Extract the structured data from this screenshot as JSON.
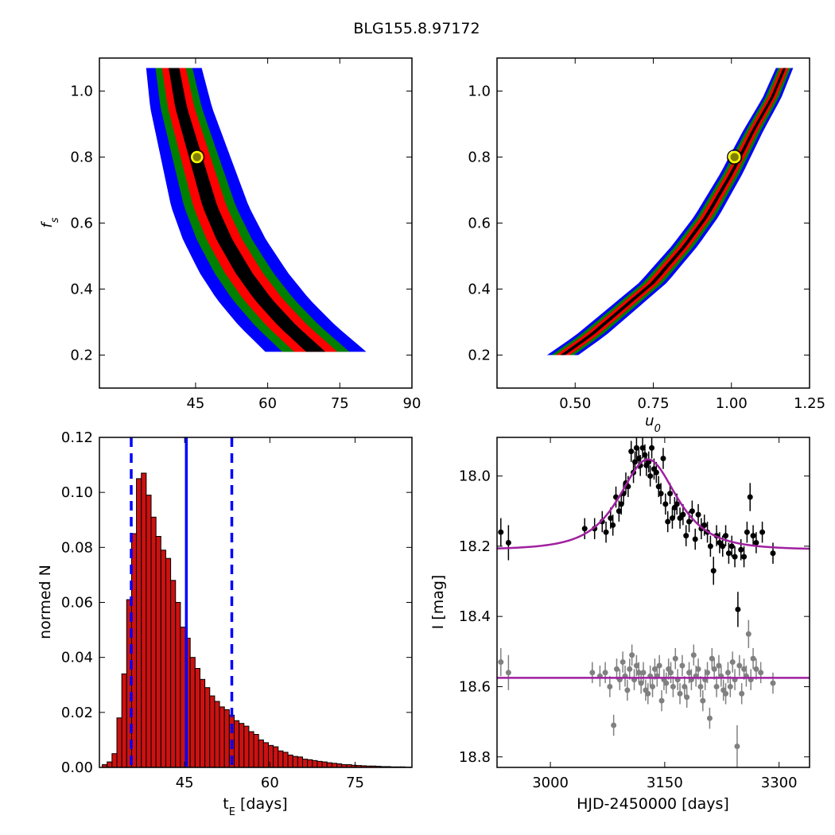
{
  "figure": {
    "title": "BLG155.8.97172"
  },
  "colors": {
    "sigma1": "#000000",
    "sigma2": "#ff0000",
    "sigma3": "#008000",
    "sigma4": "#0000ff",
    "best_marker_face": "#808000",
    "best_marker_edge": "#ffff00",
    "hist_bar": "#cc1111",
    "hist_lines": "#0000ff",
    "lc_event": "#000000",
    "lc_comparison": "#808080",
    "model": "#a020a0"
  },
  "chart_data": [
    {
      "id": "fs_vs_tE",
      "type": "heatmap",
      "xlabel": "",
      "ylabel": "f_s",
      "xlim": [
        25,
        90
      ],
      "ylim": [
        0.1,
        1.1
      ],
      "xticks": [
        45,
        60,
        75,
        90
      ],
      "yticks": [
        0.2,
        0.4,
        0.6,
        0.8,
        1.0
      ],
      "ridge": {
        "x": [
          40.5,
          42,
          44,
          46,
          48,
          51,
          55,
          59,
          64,
          70
        ],
        "y": [
          1.07,
          0.95,
          0.85,
          0.75,
          0.65,
          0.55,
          0.45,
          0.37,
          0.29,
          0.21
        ]
      },
      "widths_x": [
        2.0,
        4.5,
        7.0,
        10.5
      ],
      "best_fit": {
        "x": 45.3,
        "y": 0.8
      }
    },
    {
      "id": "fs_vs_u0",
      "type": "heatmap",
      "xlabel": "u_0",
      "ylabel": "",
      "xlim": [
        0.25,
        1.25
      ],
      "ylim": [
        0.1,
        1.1
      ],
      "xticks": [
        0.5,
        0.75,
        1.0,
        1.25
      ],
      "yticks": [
        0.2,
        0.4,
        0.6,
        0.8,
        1.0
      ],
      "ridge": {
        "x": [
          0.46,
          0.55,
          0.65,
          0.75,
          0.85,
          0.92,
          1.0,
          1.07,
          1.13,
          1.17
        ],
        "y": [
          0.2,
          0.26,
          0.34,
          0.42,
          0.53,
          0.62,
          0.75,
          0.88,
          0.98,
          1.07
        ]
      },
      "widths_x": [
        0.008,
        0.022,
        0.036,
        0.05
      ],
      "best_fit": {
        "x": 1.01,
        "y": 0.8
      }
    },
    {
      "id": "tE_histogram",
      "type": "bar",
      "xlabel": "t_E [days]",
      "ylabel": "normed N",
      "xlim": [
        30,
        85
      ],
      "ylim": [
        0,
        0.12
      ],
      "xticks": [
        45,
        60,
        75
      ],
      "yticks": [
        0.0,
        0.02,
        0.04,
        0.06,
        0.08,
        0.1,
        0.12
      ],
      "bin_start": 30.5,
      "bin_width": 0.86,
      "values": [
        0.001,
        0.002,
        0.005,
        0.018,
        0.034,
        0.061,
        0.085,
        0.105,
        0.107,
        0.099,
        0.091,
        0.084,
        0.079,
        0.076,
        0.068,
        0.06,
        0.051,
        0.047,
        0.04,
        0.036,
        0.032,
        0.029,
        0.026,
        0.024,
        0.022,
        0.021,
        0.019,
        0.017,
        0.016,
        0.015,
        0.013,
        0.012,
        0.01,
        0.009,
        0.008,
        0.0075,
        0.006,
        0.0055,
        0.0045,
        0.004,
        0.0038,
        0.003,
        0.0028,
        0.0025,
        0.0022,
        0.002,
        0.0017,
        0.0015,
        0.0013,
        0.001,
        0.001,
        0.0008,
        0.0007,
        0.0006,
        0.0005,
        0.0005,
        0.0004,
        0.0003,
        0.0003,
        0.0002,
        0.0002,
        0.0002,
        0.0001,
        0.0001
      ],
      "median": 45.3,
      "dashed_lines": [
        35.6,
        53.3
      ]
    },
    {
      "id": "light_curve",
      "type": "scatter",
      "xlabel": "HJD-2450000 [days]",
      "ylabel": "I [mag]",
      "xlim": [
        2930,
        3340
      ],
      "ylim": [
        18.83,
        17.89
      ],
      "xticks": [
        3000,
        3150,
        3300
      ],
      "yticks": [
        18.0,
        18.2,
        18.4,
        18.6,
        18.8
      ],
      "model": {
        "t0": 3128,
        "tE": 45.3,
        "u0": 1.01,
        "fs": 0.8,
        "base_event": 18.21,
        "base_comparison": 18.575
      },
      "event_points": {
        "x": [
          2935,
          2945,
          3045,
          3058,
          3068,
          3073,
          3079,
          3082,
          3086,
          3090,
          3093,
          3096,
          3099,
          3102,
          3106,
          3109,
          3111,
          3113,
          3116,
          3118,
          3121,
          3124,
          3126,
          3129,
          3131,
          3133,
          3136,
          3139,
          3142,
          3145,
          3148,
          3151,
          3154,
          3157,
          3160,
          3163,
          3166,
          3170,
          3174,
          3178,
          3182,
          3186,
          3190,
          3194,
          3198,
          3202,
          3206,
          3210,
          3214,
          3218,
          3222,
          3226,
          3230,
          3234,
          3238,
          3242,
          3246,
          3250,
          3254,
          3258,
          3262,
          3266,
          3270,
          3278,
          3292
        ],
        "y": [
          18.16,
          18.19,
          18.15,
          18.15,
          18.13,
          18.16,
          18.12,
          18.14,
          18.06,
          18.1,
          18.08,
          18.05,
          18.02,
          18.03,
          17.93,
          17.99,
          17.96,
          17.92,
          17.95,
          17.97,
          17.92,
          17.94,
          17.97,
          17.96,
          18.0,
          17.92,
          17.98,
          17.99,
          18.03,
          18.05,
          17.95,
          18.08,
          18.13,
          18.05,
          18.12,
          18.09,
          18.08,
          18.12,
          18.11,
          18.17,
          18.13,
          18.1,
          18.18,
          18.11,
          18.15,
          18.14,
          18.16,
          18.2,
          18.27,
          18.17,
          18.19,
          18.2,
          18.17,
          18.22,
          18.2,
          18.23,
          18.38,
          18.21,
          18.23,
          18.16,
          18.06,
          18.17,
          18.19,
          18.16,
          18.22
        ],
        "err": [
          0.04,
          0.05,
          0.03,
          0.03,
          0.03,
          0.03,
          0.03,
          0.03,
          0.03,
          0.03,
          0.03,
          0.03,
          0.03,
          0.03,
          0.03,
          0.03,
          0.03,
          0.03,
          0.03,
          0.03,
          0.03,
          0.03,
          0.03,
          0.03,
          0.03,
          0.03,
          0.03,
          0.03,
          0.03,
          0.03,
          0.03,
          0.03,
          0.03,
          0.03,
          0.03,
          0.03,
          0.03,
          0.03,
          0.03,
          0.03,
          0.03,
          0.03,
          0.03,
          0.03,
          0.03,
          0.03,
          0.03,
          0.03,
          0.04,
          0.03,
          0.03,
          0.03,
          0.03,
          0.03,
          0.03,
          0.03,
          0.05,
          0.03,
          0.03,
          0.03,
          0.04,
          0.03,
          0.03,
          0.03,
          0.03
        ]
      },
      "comparison_points": {
        "x": [
          2935,
          2945,
          3055,
          3065,
          3072,
          3078,
          3083,
          3087,
          3091,
          3095,
          3098,
          3101,
          3104,
          3107,
          3110,
          3113,
          3116,
          3119,
          3122,
          3125,
          3128,
          3131,
          3134,
          3137,
          3140,
          3143,
          3146,
          3149,
          3152,
          3155,
          3158,
          3161,
          3164,
          3167,
          3170,
          3173,
          3176,
          3179,
          3182,
          3185,
          3188,
          3191,
          3194,
          3197,
          3200,
          3203,
          3206,
          3209,
          3212,
          3215,
          3218,
          3221,
          3224,
          3227,
          3230,
          3233,
          3236,
          3239,
          3242,
          3245,
          3248,
          3251,
          3254,
          3257,
          3260,
          3263,
          3266,
          3270,
          3276,
          3292
        ],
        "y": [
          18.53,
          18.56,
          18.56,
          18.57,
          18.56,
          18.6,
          18.71,
          18.55,
          18.58,
          18.53,
          18.57,
          18.61,
          18.55,
          18.51,
          18.58,
          18.54,
          18.56,
          18.59,
          18.56,
          18.61,
          18.62,
          18.57,
          18.6,
          18.55,
          18.57,
          18.54,
          18.64,
          18.58,
          18.59,
          18.55,
          18.56,
          18.6,
          18.52,
          18.58,
          18.62,
          18.54,
          18.6,
          18.63,
          18.56,
          18.58,
          18.51,
          18.57,
          18.55,
          18.6,
          18.64,
          18.58,
          18.56,
          18.69,
          18.52,
          18.55,
          18.6,
          18.54,
          18.57,
          18.61,
          18.62,
          18.56,
          18.6,
          18.53,
          18.58,
          18.77,
          18.54,
          18.62,
          18.55,
          18.57,
          18.45,
          18.58,
          18.52,
          18.55,
          18.56,
          18.59
        ],
        "err": [
          0.04,
          0.05,
          0.03,
          0.03,
          0.03,
          0.03,
          0.03,
          0.03,
          0.03,
          0.03,
          0.03,
          0.03,
          0.03,
          0.03,
          0.03,
          0.03,
          0.03,
          0.03,
          0.03,
          0.03,
          0.03,
          0.03,
          0.03,
          0.03,
          0.03,
          0.03,
          0.03,
          0.03,
          0.03,
          0.03,
          0.03,
          0.03,
          0.03,
          0.03,
          0.03,
          0.03,
          0.03,
          0.03,
          0.03,
          0.03,
          0.03,
          0.03,
          0.03,
          0.03,
          0.03,
          0.03,
          0.03,
          0.03,
          0.03,
          0.03,
          0.03,
          0.03,
          0.03,
          0.03,
          0.03,
          0.03,
          0.03,
          0.03,
          0.03,
          0.06,
          0.03,
          0.03,
          0.03,
          0.03,
          0.04,
          0.03,
          0.03,
          0.03,
          0.03,
          0.03
        ]
      }
    }
  ]
}
